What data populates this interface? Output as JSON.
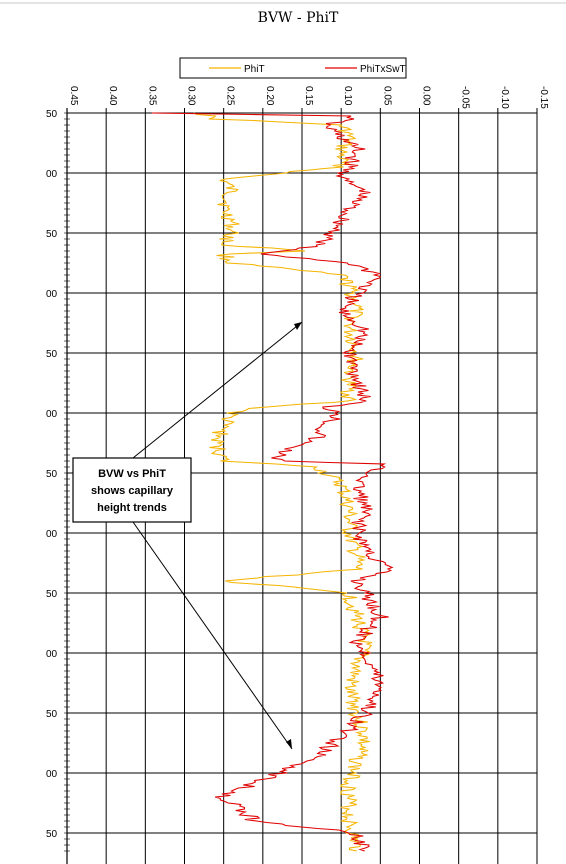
{
  "chart_data": {
    "type": "line",
    "title": "BVW - PhiT",
    "x_ticks": [
      "0.45",
      "0.40",
      "0.35",
      "0.30",
      "0.25",
      "0.20",
      "0.15",
      "0.10",
      "0.05",
      "0.00",
      "-0.05",
      "-0.10",
      "-0.15"
    ],
    "x_tick_values": [
      0.45,
      0.4,
      0.35,
      0.3,
      0.25,
      0.2,
      0.15,
      0.1,
      0.05,
      0.0,
      -0.05,
      -0.1,
      -0.15
    ],
    "xlim": [
      0.45,
      -0.15
    ],
    "y_ticks": [
      "50",
      "00",
      "50",
      "00",
      "50",
      "00",
      "50",
      "00",
      "50",
      "00",
      "50",
      "00",
      "50"
    ],
    "ylim": [
      0,
      12.3
    ],
    "grid": true,
    "legend_position": "top",
    "series": [
      {
        "name": "PhiT",
        "color": "#f5b400",
        "points": [
          [
            0,
            0.28
          ],
          [
            0.1,
            0.26
          ],
          [
            0.2,
            0.1
          ],
          [
            0.4,
            0.09
          ],
          [
            0.6,
            0.1
          ],
          [
            0.9,
            0.1
          ],
          [
            1.1,
            0.25
          ],
          [
            1.3,
            0.24
          ],
          [
            1.6,
            0.25
          ],
          [
            1.8,
            0.24
          ],
          [
            2.0,
            0.24
          ],
          [
            2.2,
            0.25
          ],
          [
            2.3,
            0.14
          ],
          [
            2.35,
            0.25
          ],
          [
            2.5,
            0.24
          ],
          [
            2.7,
            0.1
          ],
          [
            2.9,
            0.09
          ],
          [
            3.2,
            0.08
          ],
          [
            3.6,
            0.09
          ],
          [
            4.0,
            0.08
          ],
          [
            4.4,
            0.09
          ],
          [
            4.8,
            0.09
          ],
          [
            4.9,
            0.2
          ],
          [
            5.0,
            0.24
          ],
          [
            5.2,
            0.25
          ],
          [
            5.5,
            0.26
          ],
          [
            5.8,
            0.25
          ],
          [
            5.9,
            0.13
          ],
          [
            6.2,
            0.1
          ],
          [
            6.6,
            0.09
          ],
          [
            7.0,
            0.09
          ],
          [
            7.4,
            0.08
          ],
          [
            7.6,
            0.08
          ],
          [
            7.8,
            0.25
          ],
          [
            8.0,
            0.09
          ],
          [
            8.4,
            0.08
          ],
          [
            8.8,
            0.07
          ],
          [
            9.2,
            0.08
          ],
          [
            9.6,
            0.09
          ],
          [
            10.0,
            0.08
          ],
          [
            10.4,
            0.07
          ],
          [
            10.8,
            0.08
          ],
          [
            11.2,
            0.09
          ],
          [
            11.8,
            0.09
          ],
          [
            12.3,
            0.08
          ]
        ]
      },
      {
        "name": "PhiTxSwT",
        "color": "#e00000",
        "points": [
          [
            0,
            0.35
          ],
          [
            0.05,
            0.08
          ],
          [
            0.2,
            0.12
          ],
          [
            0.4,
            0.1
          ],
          [
            0.6,
            0.08
          ],
          [
            0.9,
            0.09
          ],
          [
            1.1,
            0.1
          ],
          [
            1.3,
            0.07
          ],
          [
            1.6,
            0.09
          ],
          [
            1.8,
            0.1
          ],
          [
            2.0,
            0.11
          ],
          [
            2.2,
            0.13
          ],
          [
            2.35,
            0.2
          ],
          [
            2.5,
            0.09
          ],
          [
            2.7,
            0.05
          ],
          [
            3.0,
            0.08
          ],
          [
            3.3,
            0.1
          ],
          [
            3.6,
            0.07
          ],
          [
            4.0,
            0.09
          ],
          [
            4.4,
            0.08
          ],
          [
            4.8,
            0.07
          ],
          [
            4.9,
            0.12
          ],
          [
            5.0,
            0.1
          ],
          [
            5.2,
            0.12
          ],
          [
            5.4,
            0.13
          ],
          [
            5.5,
            0.15
          ],
          [
            5.7,
            0.18
          ],
          [
            5.8,
            0.18
          ],
          [
            5.85,
            0.05
          ],
          [
            6.2,
            0.08
          ],
          [
            6.6,
            0.07
          ],
          [
            7.0,
            0.08
          ],
          [
            7.4,
            0.06
          ],
          [
            7.6,
            0.04
          ],
          [
            7.8,
            0.08
          ],
          [
            8.0,
            0.07
          ],
          [
            8.4,
            0.05
          ],
          [
            8.8,
            0.08
          ],
          [
            9.2,
            0.06
          ],
          [
            9.6,
            0.05
          ],
          [
            10.0,
            0.07
          ],
          [
            10.4,
            0.1
          ],
          [
            10.8,
            0.14
          ],
          [
            11.0,
            0.18
          ],
          [
            11.4,
            0.25
          ],
          [
            11.8,
            0.21
          ],
          [
            12.0,
            0.08
          ],
          [
            12.3,
            0.07
          ]
        ]
      }
    ],
    "annotations": [
      {
        "lines": [
          "BVW vs PhiT",
          "shows capillary",
          "height trends"
        ]
      }
    ]
  }
}
